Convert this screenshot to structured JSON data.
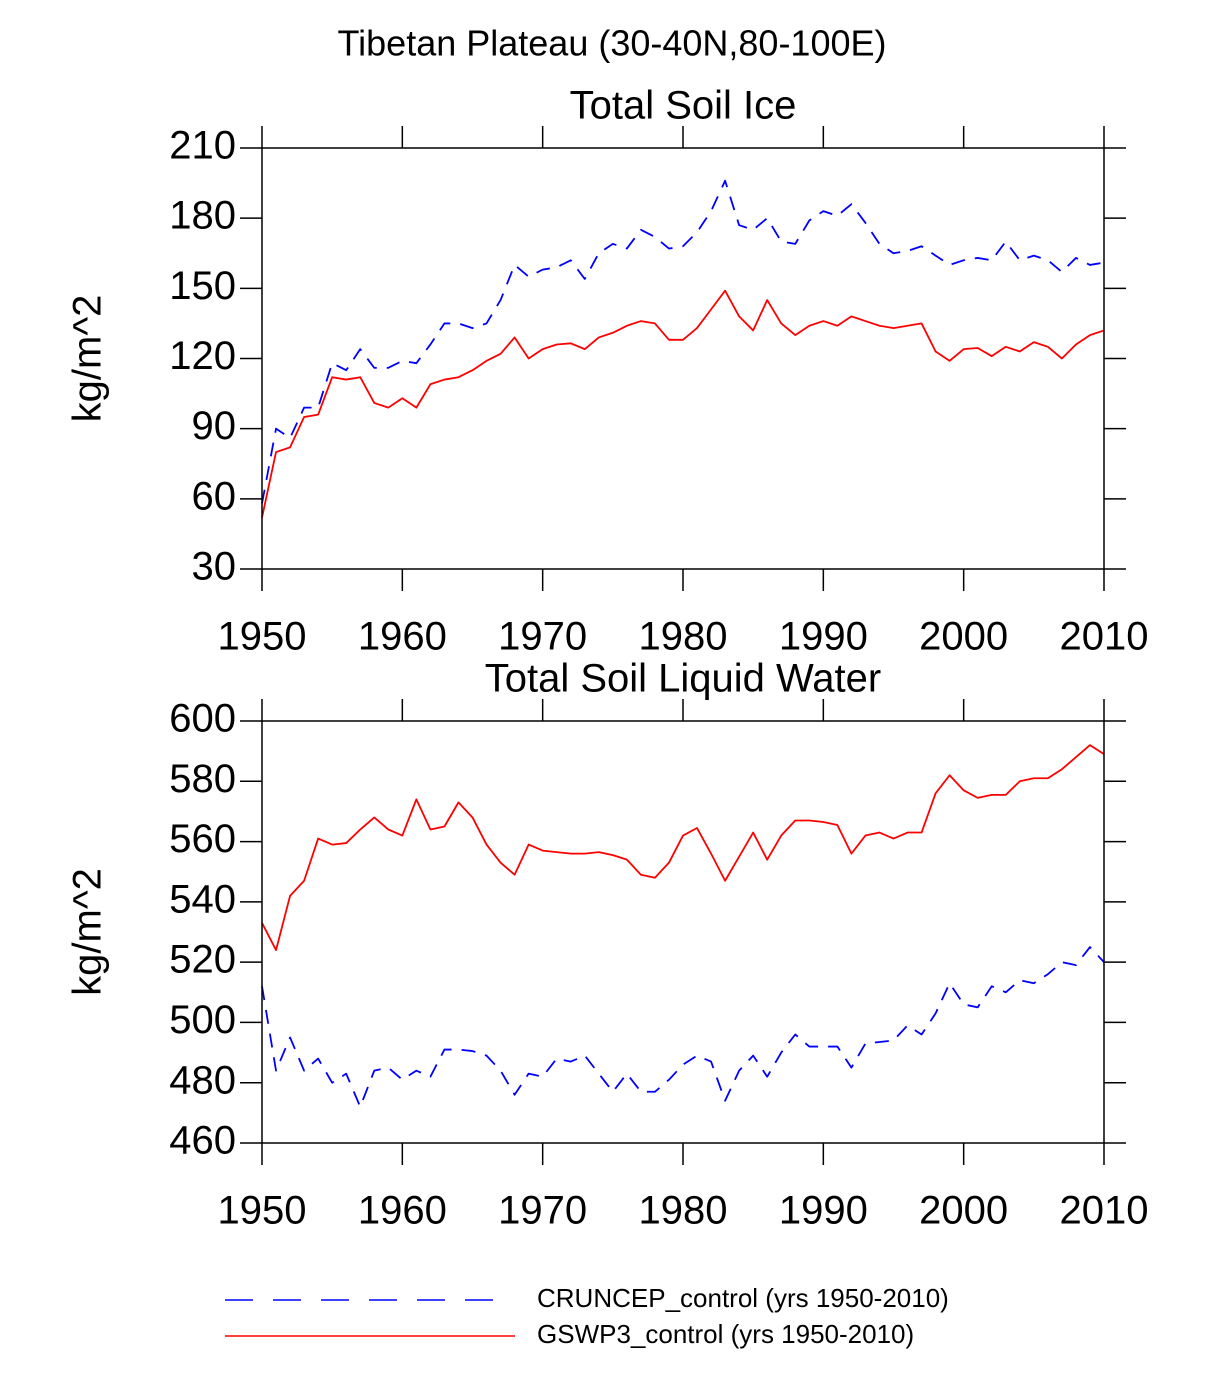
{
  "title": "Tibetan Plateau (30-40N,80-100E)",
  "chart_data": [
    {
      "type": "line",
      "title": "Total Soil Ice",
      "ylabel": "kg/m^2",
      "x": [
        1950,
        1951,
        1952,
        1953,
        1954,
        1955,
        1956,
        1957,
        1958,
        1959,
        1960,
        1961,
        1962,
        1963,
        1964,
        1965,
        1966,
        1967,
        1968,
        1969,
        1970,
        1971,
        1972,
        1973,
        1974,
        1975,
        1976,
        1977,
        1978,
        1979,
        1980,
        1981,
        1982,
        1983,
        1984,
        1985,
        1986,
        1987,
        1988,
        1989,
        1990,
        1991,
        1992,
        1993,
        1994,
        1995,
        1996,
        1997,
        1998,
        1999,
        2000,
        2001,
        2002,
        2003,
        2004,
        2005,
        2006,
        2007,
        2008,
        2009,
        2010
      ],
      "xlim": [
        1950,
        2010
      ],
      "xticks": [
        1950,
        1960,
        1970,
        1980,
        1990,
        2000,
        2010
      ],
      "ylim": [
        30,
        210
      ],
      "yticks": [
        30,
        60,
        90,
        120,
        150,
        180,
        210
      ],
      "series": [
        {
          "name": "CRUNCEP_control (yrs 1950-2010)",
          "color": "#0000ff",
          "line_style": "dashed",
          "values": [
            58,
            90,
            86,
            99,
            99,
            118,
            115,
            124,
            116,
            116,
            119,
            118,
            126,
            135,
            135,
            133,
            135,
            145,
            160,
            155,
            158,
            159,
            162,
            154,
            165,
            169,
            167,
            175,
            172,
            167,
            168,
            174,
            183,
            196,
            177,
            175,
            180,
            170,
            169,
            179,
            183,
            181,
            186,
            178,
            169,
            165,
            166,
            168,
            164,
            160,
            162,
            163,
            162,
            170,
            162,
            164,
            162,
            157,
            163,
            160,
            161
          ]
        },
        {
          "name": "GSWP3_control (yrs 1950-2010)",
          "color": "#ff0000",
          "line_style": "solid",
          "values": [
            52,
            80,
            82,
            95,
            96,
            112,
            111,
            112,
            101,
            99,
            103,
            99,
            109,
            111,
            112,
            115,
            119,
            122,
            129,
            120,
            124,
            126,
            126.5,
            124,
            129,
            131,
            134,
            136,
            135,
            128,
            128,
            133,
            141,
            149,
            138,
            132,
            145,
            135,
            130,
            134,
            136,
            134,
            138,
            136,
            134,
            133,
            134,
            135,
            123,
            119,
            124,
            124.5,
            121,
            125,
            123,
            127,
            125,
            120,
            126,
            130,
            132
          ]
        }
      ]
    },
    {
      "type": "line",
      "title": "Total Soil Liquid Water",
      "ylabel": "kg/m^2",
      "x": [
        1950,
        1951,
        1952,
        1953,
        1954,
        1955,
        1956,
        1957,
        1958,
        1959,
        1960,
        1961,
        1962,
        1963,
        1964,
        1965,
        1966,
        1967,
        1968,
        1969,
        1970,
        1971,
        1972,
        1973,
        1974,
        1975,
        1976,
        1977,
        1978,
        1979,
        1980,
        1981,
        1982,
        1983,
        1984,
        1985,
        1986,
        1987,
        1988,
        1989,
        1990,
        1991,
        1992,
        1993,
        1994,
        1995,
        1996,
        1997,
        1998,
        1999,
        2000,
        2001,
        2002,
        2003,
        2004,
        2005,
        2006,
        2007,
        2008,
        2009,
        2010
      ],
      "xlim": [
        1950,
        2010
      ],
      "xticks": [
        1950,
        1960,
        1970,
        1980,
        1990,
        2000,
        2010
      ],
      "ylim": [
        460,
        600
      ],
      "yticks": [
        460,
        480,
        500,
        520,
        540,
        560,
        580,
        600
      ],
      "series": [
        {
          "name": "CRUNCEP_control (yrs 1950-2010)",
          "color": "#0000ff",
          "line_style": "dashed",
          "values": [
            512,
            484,
            495,
            484,
            488,
            480,
            483,
            472,
            484,
            485,
            481,
            484,
            482,
            491,
            491,
            490.5,
            489,
            484,
            476,
            483,
            482,
            488,
            487,
            489,
            483,
            477,
            483,
            477,
            477,
            481,
            486,
            489,
            487,
            474,
            484,
            489,
            482,
            490,
            496,
            492,
            492,
            492,
            485,
            493,
            493.5,
            494,
            499,
            496,
            503,
            513,
            506,
            505,
            512,
            510,
            514,
            513,
            516,
            520,
            519,
            525,
            520
          ]
        },
        {
          "name": "GSWP3_control (yrs 1950-2010)",
          "color": "#ff0000",
          "line_style": "solid",
          "values": [
            533,
            524,
            542,
            547,
            561,
            559,
            559.5,
            564,
            568,
            564,
            562,
            574,
            564,
            565,
            573,
            568,
            559,
            553,
            549,
            559,
            557,
            556.5,
            556,
            556,
            556.5,
            555.5,
            554,
            549,
            548,
            553,
            562,
            564.5,
            556,
            547,
            555,
            563,
            554,
            562,
            567,
            567,
            566.5,
            565.5,
            556,
            562,
            563,
            561,
            563,
            563,
            576,
            582,
            577,
            574.5,
            575.5,
            575.5,
            580,
            581,
            581,
            584,
            588,
            592,
            589
          ]
        }
      ]
    }
  ]
}
